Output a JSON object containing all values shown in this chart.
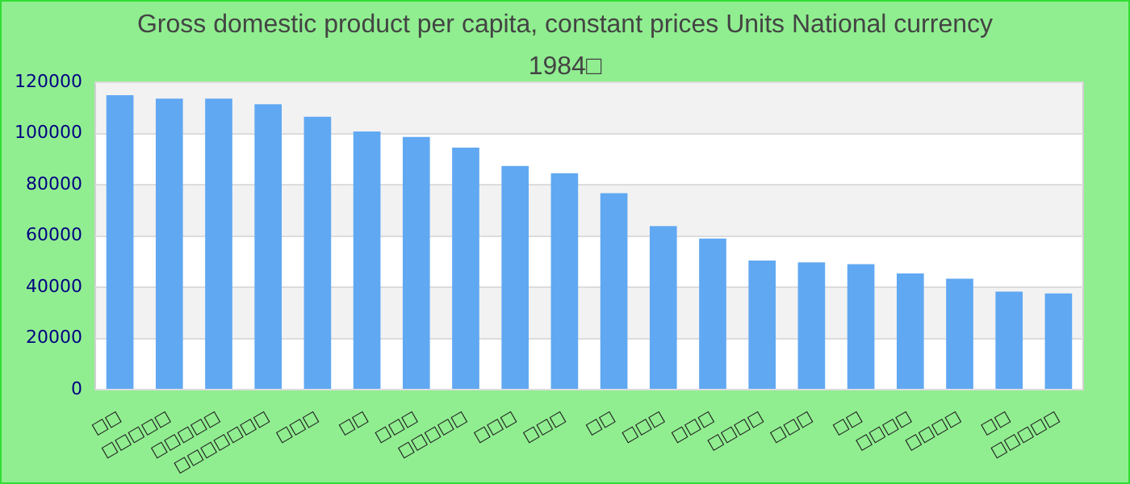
{
  "chart_data": {
    "type": "bar",
    "title": "Gross domestic product per capita, constant prices Units National currency 1984□",
    "categories": [
      "□□",
      "□□□□□",
      "□□□□□",
      "□□□□□□□",
      "□□□",
      "□□",
      "□□□",
      "□□□□□",
      "□□□",
      "□□□",
      "□□",
      "□□□",
      "□□□",
      "□□□□",
      "□□□",
      "□□",
      "□□□□",
      "□□□□",
      "□□",
      "□□□□□"
    ],
    "values": [
      115000,
      113600,
      113600,
      111400,
      106500,
      100800,
      98700,
      94500,
      87300,
      84500,
      76700,
      63900,
      59000,
      50400,
      49700,
      49000,
      45400,
      43300,
      38300,
      37600
    ],
    "color": "#60a8f2",
    "ylim": [
      0,
      120000
    ],
    "yticks": [
      0,
      20000,
      40000,
      60000,
      80000,
      100000,
      120000
    ],
    "grid": true
  }
}
